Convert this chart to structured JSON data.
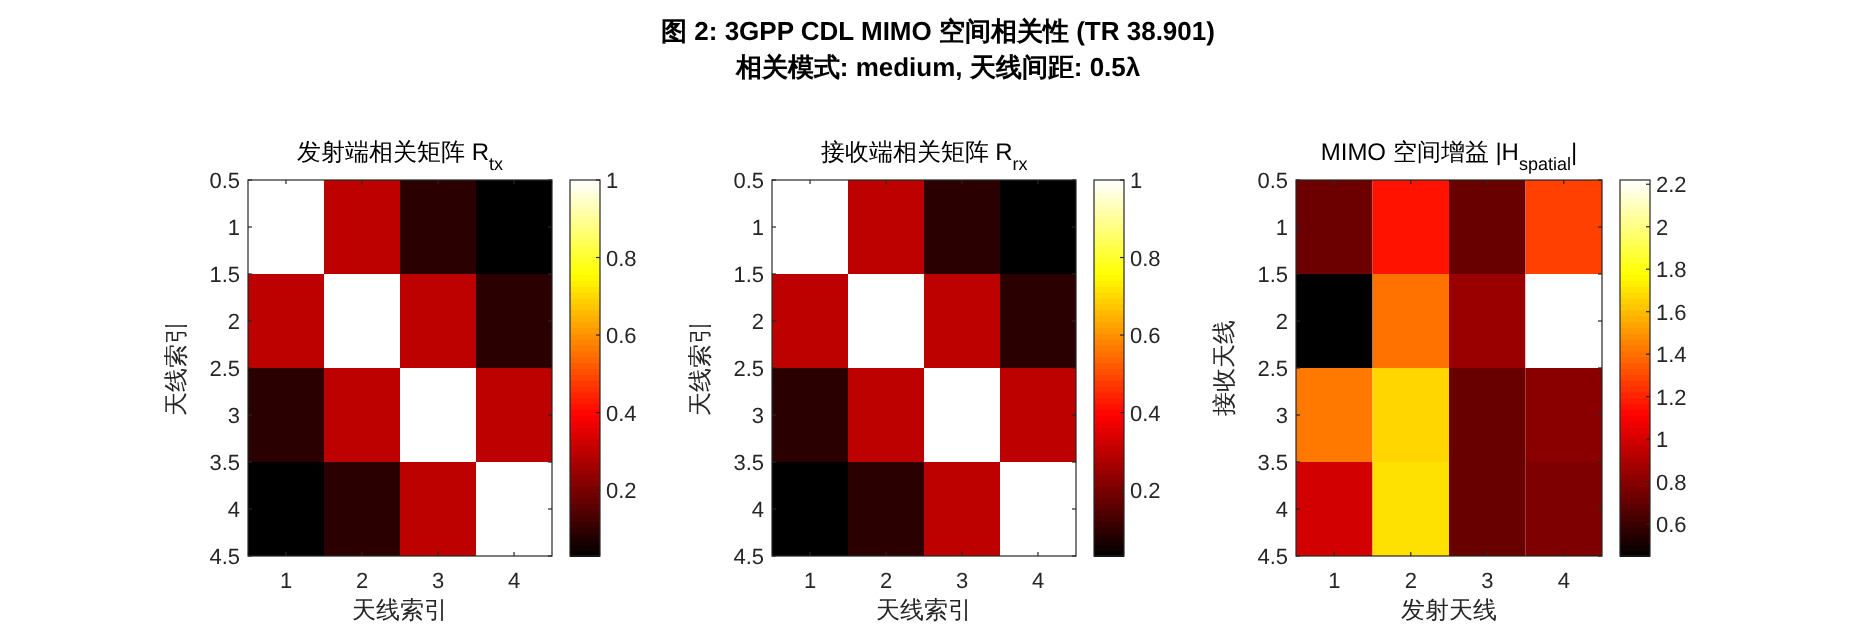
{
  "chart_data": [
    {
      "type": "heatmap",
      "title": "发射端相关矩阵 R$_{tx}$",
      "xlabel": "天线索引",
      "ylabel": "天线索引",
      "annotations": [
        "图 2: 3GPP CDL MIMO 空间相关性 (TR 38.901)",
        "相关模式: medium, 天线间距: 0.5λ"
      ],
      "categories": [
        "1",
        "2",
        "3",
        "4"
      ],
      "ylim": [
        4.5,
        0.5
      ],
      "yticks": [
        0.5,
        1,
        1.5,
        2,
        2.5,
        3,
        3.5,
        4,
        4.5
      ],
      "cells": [
        [
          1,
          0.3,
          0.09,
          0.03
        ],
        [
          0.3,
          1,
          0.3,
          0.09
        ],
        [
          0.09,
          0.3,
          1,
          0.3
        ],
        [
          0.03,
          0.09,
          0.3,
          1
        ]
      ],
      "clim": [
        0.03,
        1
      ],
      "cticks": [
        0.2,
        0.4,
        0.6,
        0.8,
        1
      ]
    },
    {
      "type": "heatmap",
      "title": "接收端相关矩阵 R$_{rx}$",
      "xlabel": "天线索引",
      "ylabel": "天线索引",
      "categories": [
        "1",
        "2",
        "3",
        "4"
      ],
      "ylim": [
        4.5,
        0.5
      ],
      "yticks": [
        0.5,
        1,
        1.5,
        2,
        2.5,
        3,
        3.5,
        4,
        4.5
      ],
      "cells": [
        [
          1,
          0.3,
          0.09,
          0.03
        ],
        [
          0.3,
          1,
          0.3,
          0.09
        ],
        [
          0.09,
          0.3,
          1,
          0.3
        ],
        [
          0.03,
          0.09,
          0.3,
          1
        ]
      ],
      "clim": [
        0.03,
        1
      ],
      "cticks": [
        0.2,
        0.4,
        0.6,
        0.8,
        1
      ]
    },
    {
      "type": "heatmap",
      "title": "MIMO 空间增益 |H$_{spatial}$|",
      "xlabel": "发射天线",
      "ylabel": "接收天线",
      "categories": [
        "1",
        "2",
        "3",
        "4"
      ],
      "ylim": [
        4.5,
        0.5
      ],
      "yticks": [
        0.5,
        1,
        1.5,
        2,
        2.5,
        3,
        3.5,
        4,
        4.5
      ],
      "cells": [
        [
          0.73,
          1.16,
          0.72,
          1.28
        ],
        [
          0.45,
          1.41,
          0.85,
          2.22
        ],
        [
          1.43,
          1.67,
          0.72,
          0.81
        ],
        [
          1.0,
          1.7,
          0.72,
          0.78
        ]
      ],
      "clim": [
        0.45,
        2.22
      ],
      "cticks": [
        0.6,
        0.8,
        1,
        1.2,
        1.4,
        1.6,
        1.8,
        2,
        2.2
      ]
    }
  ]
}
